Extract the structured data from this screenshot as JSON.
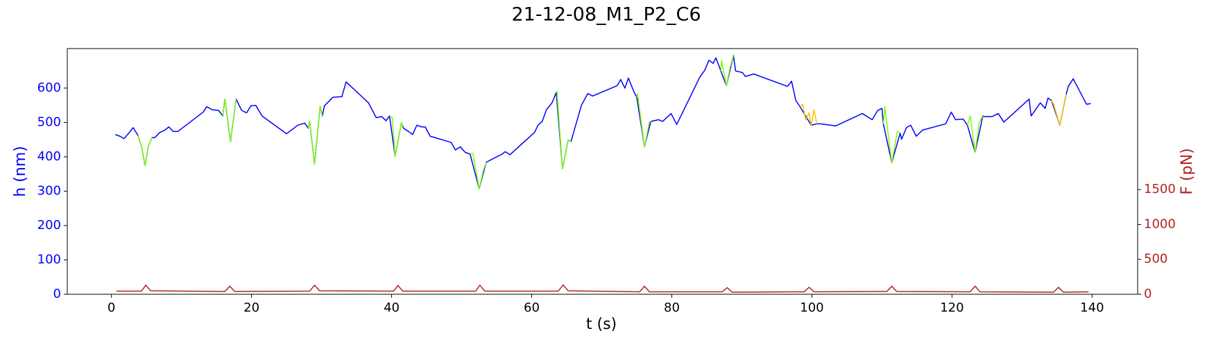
{
  "chart_data": {
    "type": "line",
    "title": "21-12-08_M1_P2_C6",
    "xlabel": "t (s)",
    "ylabel": "h (nm)",
    "y2label": "F (pN)",
    "xlim": [
      -6.3,
      146.5
    ],
    "xticks": [
      0,
      20,
      40,
      60,
      80,
      100,
      120,
      140
    ],
    "ylim": [
      0,
      715
    ],
    "yticks": [
      0,
      100,
      200,
      300,
      400,
      500,
      600
    ],
    "y2lim": [
      0,
      3520
    ],
    "y2ticks": [
      0,
      500,
      1000,
      1500
    ],
    "series": [
      {
        "color": "#0000ff",
        "x": [
          0.55,
          1.2,
          1.8,
          2.4,
          3.1,
          3.8,
          4.3,
          4.8,
          5.3,
          5.8,
          6.2,
          6.9,
          7.5,
          8.2,
          8.8,
          9.5,
          13.1,
          13.6,
          14.4,
          15.3,
          15.9,
          16.2,
          17.0,
          17.8,
          18.6,
          19.3,
          19.9,
          20.6,
          21.5,
          25.0,
          26.6,
          27.6,
          28.1,
          28.3,
          29.0,
          29.8,
          30.1,
          30.4,
          31.6,
          32.9,
          33.5,
          36.7,
          37.8,
          38.6,
          39.2,
          39.7,
          40.5,
          41.4,
          41.7,
          42.4,
          43.0,
          43.6,
          44.3,
          44.8,
          45.5,
          48.5,
          49.1,
          49.8,
          50.5,
          51.2,
          52.5,
          53.5,
          54.9,
          55.8,
          56.2,
          56.9,
          60.4,
          60.9,
          61.5,
          62.1,
          62.9,
          63.5,
          64.4,
          65.2,
          65.6,
          67.1,
          68.0,
          68.7,
          72.2,
          72.7,
          73.3,
          73.8,
          74.6,
          75.0,
          76.1,
          77.0,
          78.1,
          78.7,
          79.9,
          80.7,
          84.0,
          84.7,
          85.3,
          85.9,
          86.3,
          87.0,
          87.8,
          88.8,
          89.1,
          90.1,
          90.5,
          91.7,
          96.5,
          97.1,
          97.7,
          98.3,
          99.9,
          100.7,
          101.2,
          103.4,
          107.2,
          108.6,
          109.4,
          110.0,
          110.2,
          111.4,
          112.6,
          112.8,
          113.5,
          114.1,
          114.9,
          115.8,
          119.1,
          119.9,
          120.5,
          121.6,
          122.2,
          123.3,
          124.4,
          124.6,
          125.7,
          126.6,
          127.4,
          131.0,
          131.3,
          132.6,
          133.3,
          133.7,
          134.2,
          135.4,
          136.3,
          136.6,
          137.3,
          138.1,
          139.2,
          139.8
        ],
        "values": [
          465,
          460,
          453,
          467,
          485,
          462,
          429,
          375,
          433,
          456,
          456,
          471,
          476,
          487,
          474,
          474,
          530,
          546,
          537,
          535,
          519,
          568,
          444,
          568,
          535,
          528,
          548,
          550,
          519,
          467,
          492,
          498,
          483,
          503,
          379,
          548,
          519,
          548,
          573,
          575,
          618,
          557,
          514,
          517,
          505,
          519,
          402,
          499,
          483,
          474,
          465,
          492,
          487,
          487,
          460,
          442,
          420,
          429,
          413,
          408,
          307,
          384,
          399,
          408,
          415,
          406,
          471,
          492,
          503,
          537,
          557,
          587,
          365,
          449,
          444,
          550,
          584,
          577,
          607,
          625,
          600,
          629,
          589,
          573,
          429,
          503,
          508,
          503,
          526,
          494,
          632,
          652,
          681,
          672,
          688,
          650,
          607,
          695,
          650,
          645,
          634,
          641,
          605,
          620,
          564,
          546,
          492,
          496,
          496,
          490,
          526,
          508,
          535,
          541,
          496,
          383,
          469,
          451,
          485,
          492,
          460,
          478,
          496,
          530,
          508,
          510,
          492,
          413,
          519,
          517,
          517,
          526,
          501,
          568,
          519,
          557,
          541,
          571,
          564,
          492,
          582,
          605,
          627,
          596,
          553,
          555
        ]
      },
      {
        "color": "#7cfc00",
        "x": [
          3.8,
          4.3,
          4.8,
          5.3,
          5.8,
          null,
          15.9,
          16.2,
          17.0,
          17.8,
          null,
          28.1,
          28.3,
          29.0,
          29.8,
          30.1,
          null,
          39.7,
          40.1,
          40.5,
          41.4,
          41.6,
          null,
          51.2,
          51.6,
          52.5,
          53.1,
          53.5,
          null,
          63.5,
          63.6,
          64.4,
          65.2,
          65.6,
          null,
          75.0,
          75.1,
          76.1,
          76.8,
          77.0,
          null,
          87.0,
          87.1,
          87.8,
          88.3,
          88.8,
          null,
          110.2,
          110.4,
          111.4,
          112.2,
          112.6,
          null,
          122.2,
          122.6,
          123.3,
          123.9,
          124.4
        ],
        "values": [
          462,
          429,
          375,
          433,
          456,
          null,
          519,
          568,
          444,
          568,
          null,
          483,
          503,
          379,
          548,
          519,
          null,
          519,
          514,
          402,
          499,
          489,
          null,
          408,
          410,
          307,
          361,
          384,
          null,
          587,
          591,
          365,
          449,
          444,
          null,
          573,
          584,
          429,
          501,
          503,
          null,
          650,
          681,
          607,
          659,
          695,
          null,
          496,
          546,
          383,
          474,
          469,
          null,
          492,
          519,
          413,
          501,
          519
        ]
      },
      {
        "color": "#ffc000",
        "x": [
          98.3,
          98.7,
          99.1,
          99.6,
          99.9,
          100.3,
          100.7,
          null,
          134.2,
          134.5,
          135.0,
          135.4,
          136.0,
          136.3
        ],
        "values": [
          546,
          553,
          508,
          528,
          492,
          537,
          496,
          null,
          564,
          553,
          519,
          492,
          553,
          582
        ]
      },
      {
        "color": "#b22222",
        "axis": "y2",
        "x": [
          0.7,
          4.3,
          4.9,
          5.6,
          16.2,
          16.9,
          17.6,
          28.3,
          29.0,
          29.7,
          40.3,
          40.9,
          41.6,
          52.0,
          52.6,
          53.3,
          63.8,
          64.5,
          65.2,
          75.4,
          76.1,
          76.8,
          87.2,
          87.9,
          88.6,
          98.9,
          99.6,
          100.3,
          110.7,
          111.4,
          112.1,
          122.6,
          123.3,
          124.0,
          134.5,
          135.2,
          135.9,
          139.5
        ],
        "values": [
          45,
          45,
          130,
          50,
          40,
          115,
          40,
          45,
          130,
          50,
          45,
          125,
          45,
          45,
          130,
          45,
          45,
          135,
          50,
          35,
          115,
          35,
          35,
          95,
          30,
          35,
          100,
          35,
          40,
          115,
          40,
          35,
          115,
          35,
          30,
          100,
          30,
          35
        ]
      }
    ]
  }
}
